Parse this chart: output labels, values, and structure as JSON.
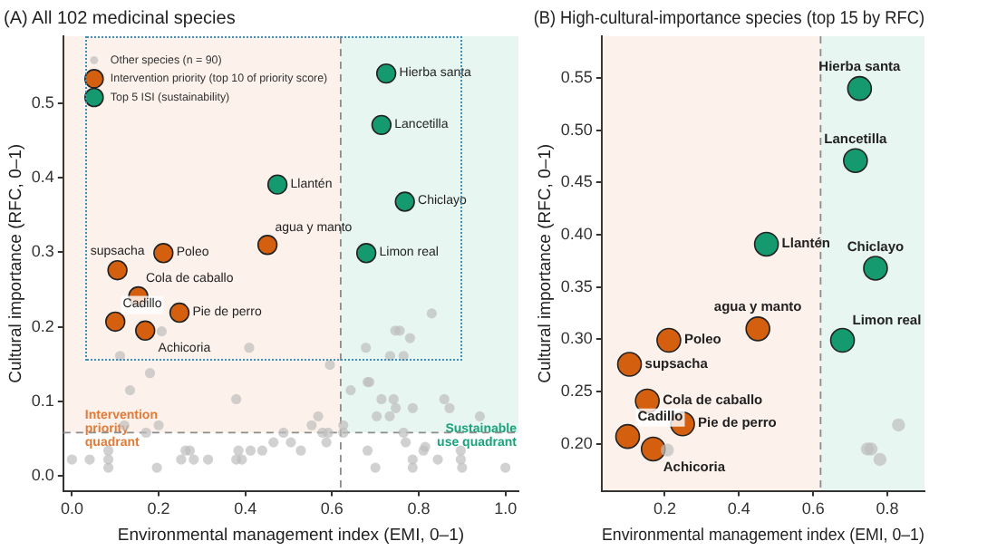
{
  "chart_data": [
    {
      "type": "scatter",
      "title": "(A) All 102 medicinal species",
      "xlabel": "Environmental management index (EMI, 0–1)",
      "ylabel": "Cultural importance (RFC, 0–1)",
      "xlim": [
        -0.02,
        1.03
      ],
      "ylim": [
        -0.02,
        0.59
      ],
      "xticks": [
        {
          "value": 0,
          "label": "0.0"
        },
        0.2,
        0.4,
        0.6,
        0.8,
        {
          "value": 1,
          "label": "1.0"
        }
      ],
      "yticks": [
        {
          "value": 0,
          "label": "0.0"
        },
        0.1,
        0.2,
        0.3,
        0.4,
        0.5
      ],
      "legend": "top left",
      "marker": "circle",
      "series": [
        {
          "name": "Other species (n = 90)",
          "color": "#bdbdbd",
          "x": [
            0.0,
            0.041,
            0.084,
            0.084,
            0.084,
            0.121,
            0.111,
            0.134,
            0.18,
            0.171,
            0.2,
            0.196,
            0.207,
            0.252,
            0.262,
            0.272,
            0.281,
            0.314,
            0.379,
            0.379,
            0.384,
            0.392,
            0.409,
            0.412,
            0.439,
            0.465,
            0.488,
            0.505,
            0.528,
            0.553,
            0.568,
            0.578,
            0.587,
            0.591,
            0.595,
            0.626,
            0.626,
            0.643,
            0.678,
            0.682,
            0.682,
            0.686,
            0.7,
            0.703,
            0.714,
            0.733,
            0.734,
            0.742,
            0.746,
            0.747,
            0.765,
            0.756,
            0.765,
            0.77,
            0.78,
            0.786,
            0.786,
            0.786,
            0.811,
            0.815,
            0.83,
            0.844,
            0.859,
            0.871,
            0.897,
            0.897,
            0.9,
            0.941,
            1.0
          ],
          "values": [
            0.022,
            0.022,
            0.022,
            0.011,
            0.034,
            0.068,
            0.161,
            0.115,
            0.138,
            0.058,
            0.068,
            0.011,
            0.194,
            0.022,
            0.034,
            0.034,
            0.022,
            0.022,
            0.103,
            0.022,
            0.034,
            0.022,
            0.172,
            0.034,
            0.034,
            0.045,
            0.058,
            0.045,
            0.034,
            0.068,
            0.08,
            0.058,
            0.045,
            0.058,
            0.149,
            0.068,
            0.058,
            0.115,
            0.172,
            0.034,
            0.126,
            0.126,
            0.011,
            0.08,
            0.103,
            0.08,
            0.161,
            0.103,
            0.195,
            0.091,
            0.161,
            0.195,
            0.058,
            0.045,
            0.185,
            0.022,
            0.011,
            0.091,
            0.034,
            0.039,
            0.218,
            0.022,
            0.103,
            0.091,
            0.034,
            0.022,
            0.011,
            0.08,
            0.011
          ]
        },
        {
          "name": "Intervention priority (top 10 of priority score)",
          "color": "#d4600f",
          "x": [
            0.451,
            0.211,
            0.105,
            0.153,
            0.1,
            0.169,
            0.248
          ],
          "values": [
            0.31,
            0.299,
            0.276,
            0.241,
            0.207,
            0.195,
            0.219
          ]
        },
        {
          "name": "Top 5 ISI (sustainability)",
          "color": "#15996f",
          "x": [
            0.725,
            0.714,
            0.474,
            0.768,
            0.679
          ],
          "values": [
            0.54,
            0.471,
            0.391,
            0.368,
            0.299
          ]
        }
      ],
      "ref_lines": [
        {
          "axis": "x",
          "value": 0.62,
          "color": "#8c8c8c",
          "line_style": "dashed"
        },
        {
          "axis": "y",
          "value": 0.058,
          "color": "#8c8c8c",
          "line_style": "dashed"
        }
      ],
      "bands": [
        {
          "axis": "x",
          "from": -0.02,
          "to": 0.62,
          "label": "Intervention priority quadrant",
          "color": "#e07b39"
        },
        {
          "axis": "x",
          "from": 0.62,
          "to": 1.03,
          "label": "Sustainable use quadrant",
          "color": "#1aa37a"
        }
      ],
      "annotations": [
        {
          "text": "Hierba santa",
          "x": 0.725,
          "y": 0.54
        },
        {
          "text": "Lancetilla",
          "x": 0.714,
          "y": 0.471
        },
        {
          "text": "Llantén",
          "x": 0.474,
          "y": 0.391
        },
        {
          "text": "Chiclayo",
          "x": 0.768,
          "y": 0.368
        },
        {
          "text": "Limon real",
          "x": 0.679,
          "y": 0.299
        },
        {
          "text": "agua y manto",
          "x": 0.451,
          "y": 0.31
        },
        {
          "text": "Poleo",
          "x": 0.211,
          "y": 0.299
        },
        {
          "text": "supsacha",
          "x": 0.105,
          "y": 0.276
        },
        {
          "text": "Cola de caballo",
          "x": 0.153,
          "y": 0.241
        },
        {
          "text": "Cadillo",
          "x": 0.1,
          "y": 0.207
        },
        {
          "text": "Achicoria",
          "x": 0.169,
          "y": 0.195
        },
        {
          "text": "Pie de perro",
          "x": 0.248,
          "y": 0.219
        }
      ]
    },
    {
      "type": "scatter",
      "title": "(B) High-cultural-importance species (top 15 by RFC)",
      "xlabel": "Environmental management index (EMI, 0–1)",
      "ylabel": "Cultural importance (RFC, 0–1)",
      "xlim": [
        0.03,
        0.9
      ],
      "ylim": [
        0.155,
        0.59
      ],
      "xticks": [
        0.2,
        0.4,
        0.6,
        0.8
      ],
      "yticks": [
        {
          "value": 0.2,
          "label": "0.20"
        },
        0.25,
        {
          "value": 0.3,
          "label": "0.30"
        },
        0.35,
        {
          "value": 0.4,
          "label": "0.40"
        },
        0.45,
        {
          "value": 0.5,
          "label": "0.50"
        },
        0.55
      ],
      "marker": "circle",
      "series": [
        {
          "color": "#bdbdbd",
          "x": [
            0.207,
            0.746,
            0.756,
            0.78,
            0.83
          ],
          "values": [
            0.194,
            0.195,
            0.195,
            0.185,
            0.218
          ]
        },
        {
          "color": "#d4600f",
          "x": [
            0.451,
            0.211,
            0.105,
            0.153,
            0.1,
            0.169,
            0.248
          ],
          "values": [
            0.31,
            0.299,
            0.276,
            0.241,
            0.207,
            0.195,
            0.219
          ]
        },
        {
          "color": "#15996f",
          "x": [
            0.725,
            0.714,
            0.474,
            0.768,
            0.679
          ],
          "values": [
            0.54,
            0.471,
            0.391,
            0.368,
            0.299
          ]
        }
      ],
      "ref_lines": [
        {
          "axis": "x",
          "value": 0.62,
          "color": "#8c8c8c",
          "line_style": "dashed"
        }
      ],
      "bands": [
        {
          "axis": "x",
          "from": 0.03,
          "to": 0.62,
          "color": "#e07b39"
        },
        {
          "axis": "x",
          "from": 0.62,
          "to": 0.9,
          "color": "#1aa37a"
        }
      ],
      "annotations": [
        {
          "text": "Hierba santa",
          "x": 0.725,
          "y": 0.54
        },
        {
          "text": "Lancetilla",
          "x": 0.714,
          "y": 0.471
        },
        {
          "text": "Llantén",
          "x": 0.474,
          "y": 0.391
        },
        {
          "text": "Chiclayo",
          "x": 0.768,
          "y": 0.368
        },
        {
          "text": "Limon real",
          "x": 0.679,
          "y": 0.299
        },
        {
          "text": "agua y manto",
          "x": 0.451,
          "y": 0.31
        },
        {
          "text": "Poleo",
          "x": 0.211,
          "y": 0.299
        },
        {
          "text": "supsacha",
          "x": 0.105,
          "y": 0.276
        },
        {
          "text": "Cola de caballo",
          "x": 0.153,
          "y": 0.241
        },
        {
          "text": "Cadillo",
          "x": 0.1,
          "y": 0.207
        },
        {
          "text": "Achicoria",
          "x": 0.169,
          "y": 0.195
        },
        {
          "text": "Pie de perro",
          "x": 0.248,
          "y": 0.219
        }
      ]
    }
  ]
}
